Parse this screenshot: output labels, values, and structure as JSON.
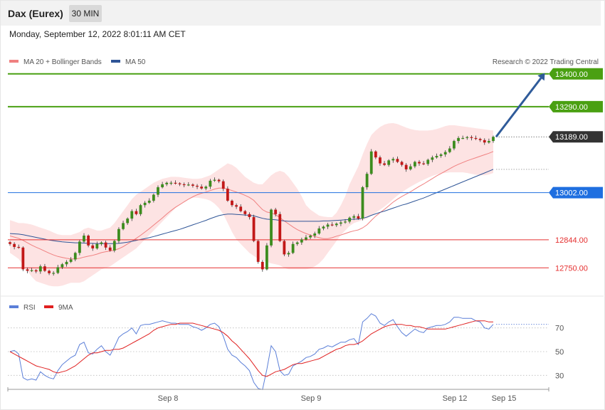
{
  "header": {
    "title": "Dax (Eurex)",
    "timeframe": "30 MIN"
  },
  "datetime": "Monday, September 12, 2022 8:01:11 AM CET",
  "credit": "Research © 2022 Trading Central",
  "legend_main": [
    {
      "label": "MA 20 + Bollinger Bands",
      "color": "#f08080"
    },
    {
      "label": "MA 50",
      "color": "#2f5597"
    }
  ],
  "legend_rsi": [
    {
      "label": "RSI",
      "color": "#5b7fd8"
    },
    {
      "label": "9MA",
      "color": "#e02020"
    }
  ],
  "chart_data": [
    {
      "type": "candlestick",
      "price_range": [
        12660,
        13440
      ],
      "levels": [
        {
          "value": 13400,
          "label": "13400.00",
          "kind": "resistance",
          "color": "#4aa012"
        },
        {
          "value": 13290,
          "label": "13290.00",
          "kind": "resistance",
          "color": "#4aa012"
        },
        {
          "value": 13189,
          "label": "13189.00",
          "kind": "last-price",
          "color": "#333333"
        },
        {
          "value": 13002,
          "label": "13002.00",
          "kind": "pivot",
          "color": "#1f6fe0"
        },
        {
          "value": 12844,
          "label": "12844.00",
          "kind": "support",
          "color": "#e53030"
        },
        {
          "value": 12750,
          "label": "12750.00",
          "kind": "support",
          "color": "#e53030"
        }
      ],
      "projection": {
        "from": 13189,
        "to": 13400
      },
      "x_labels": [
        "Sep 8",
        "Sep 9",
        "Sep 12",
        "Sep 15"
      ],
      "closes": [
        12830,
        12820,
        12818,
        12745,
        12740,
        12742,
        12738,
        12755,
        12740,
        12732,
        12733,
        12752,
        12762,
        12770,
        12778,
        12800,
        12838,
        12858,
        12825,
        12815,
        12830,
        12835,
        12818,
        12808,
        12840,
        12880,
        12900,
        12915,
        12940,
        12930,
        12960,
        12968,
        12975,
        12995,
        13020,
        13030,
        13035,
        13035,
        13033,
        13030,
        13028,
        13029,
        13025,
        13022,
        13016,
        13022,
        13042,
        13045,
        13040,
        13015,
        12975,
        12960,
        12955,
        12940,
        12930,
        12920,
        12840,
        12770,
        12745,
        12825,
        12945,
        12930,
        12840,
        12795,
        12800,
        12830,
        12835,
        12845,
        12852,
        12858,
        12865,
        12882,
        12888,
        12895,
        12893,
        12898,
        12902,
        12905,
        12918,
        12923,
        12915,
        13020,
        13065,
        13140,
        13120,
        13100,
        13095,
        13110,
        13115,
        13105,
        13095,
        13080,
        13090,
        13105,
        13100,
        13098,
        13112,
        13120,
        13125,
        13130,
        13138,
        13150,
        13175,
        13185,
        13185,
        13188,
        13185,
        13182,
        13178,
        13170,
        13175,
        13189
      ],
      "ma20": [
        12857,
        12853,
        12849,
        12842,
        12834,
        12826,
        12819,
        12813,
        12806,
        12799,
        12793,
        12788,
        12785,
        12782,
        12780,
        12780,
        12782,
        12786,
        12789,
        12792,
        12796,
        12801,
        12804,
        12806,
        12809,
        12814,
        12821,
        12830,
        12839,
        12849,
        12859,
        12870,
        12881,
        12893,
        12905,
        12917,
        12930,
        12942,
        12953,
        12962,
        12971,
        12980,
        12988,
        12995,
        13000,
        13004,
        13009,
        13014,
        13017,
        13017,
        13014,
        13009,
        13004,
        12999,
        12993,
        12986,
        12976,
        12960,
        12945,
        12937,
        12934,
        12928,
        12918,
        12907,
        12897,
        12887,
        12878,
        12871,
        12865,
        12860,
        12855,
        12851,
        12848,
        12848,
        12851,
        12856,
        12860,
        12865,
        12870,
        12874,
        12877,
        12884,
        12894,
        12909,
        12923,
        12935,
        12946,
        12958,
        12970,
        12980,
        12989,
        12997,
        13005,
        13014,
        13023,
        13031,
        13040,
        13049,
        13058,
        13066,
        13074,
        13082,
        13090,
        13097,
        13103,
        13109,
        13114,
        13119,
        13124,
        13129,
        13134,
        13140
      ],
      "bb_upper": [
        12910,
        12905,
        12900,
        12900,
        12898,
        12895,
        12890,
        12885,
        12880,
        12875,
        12868,
        12862,
        12860,
        12860,
        12860,
        12865,
        12870,
        12880,
        12885,
        12880,
        12875,
        12875,
        12880,
        12885,
        12900,
        12920,
        12940,
        12960,
        12980,
        12995,
        13005,
        13015,
        13025,
        13035,
        13042,
        13048,
        13052,
        13055,
        13055,
        13054,
        13052,
        13050,
        13048,
        13048,
        13050,
        13055,
        13060,
        13070,
        13080,
        13090,
        13100,
        13095,
        13085,
        13070,
        13055,
        13045,
        13035,
        13030,
        13030,
        13045,
        13060,
        13070,
        13075,
        13070,
        13055,
        13035,
        13015,
        12990,
        12960,
        12945,
        12935,
        12925,
        12922,
        12920,
        12920,
        12935,
        12960,
        12990,
        13030,
        13060,
        13090,
        13130,
        13165,
        13195,
        13210,
        13222,
        13230,
        13234,
        13235,
        13232,
        13226,
        13220,
        13215,
        13212,
        13210,
        13210,
        13210,
        13212,
        13215,
        13220,
        13225,
        13228,
        13228,
        13226,
        13224,
        13222,
        13220,
        13218,
        13216,
        13214,
        13212,
        13210
      ],
      "bb_lower": [
        12800,
        12790,
        12780,
        12760,
        12740,
        12720,
        12705,
        12700,
        12695,
        12690,
        12688,
        12688,
        12690,
        12695,
        12700,
        12700,
        12700,
        12705,
        12715,
        12725,
        12735,
        12745,
        12750,
        12755,
        12765,
        12775,
        12785,
        12795,
        12805,
        12815,
        12830,
        12845,
        12860,
        12875,
        12890,
        12905,
        12920,
        12935,
        12950,
        12962,
        12972,
        12980,
        12985,
        12985,
        12983,
        12980,
        12975,
        12965,
        12950,
        12930,
        12900,
        12870,
        12845,
        12830,
        12815,
        12800,
        12790,
        12780,
        12775,
        12770,
        12765,
        12762,
        12758,
        12750,
        12745,
        12745,
        12745,
        12745,
        12745,
        12748,
        12755,
        12765,
        12780,
        12800,
        12820,
        12840,
        12860,
        12875,
        12890,
        12900,
        12905,
        12910,
        12915,
        12925,
        12935,
        12945,
        12955,
        12967,
        12980,
        12992,
        13003,
        13013,
        13022,
        13030,
        13038,
        13045,
        13052,
        13058,
        13063,
        13066,
        13068,
        13070,
        13070,
        13070,
        13070,
        13068,
        13065,
        13062,
        13060,
        13060,
        13063,
        13068
      ],
      "ma50": [
        12865,
        12864,
        12863,
        12861,
        12858,
        12855,
        12852,
        12849,
        12846,
        12843,
        12841,
        12839,
        12837,
        12836,
        12835,
        12834,
        12834,
        12833,
        12832,
        12832,
        12831,
        12831,
        12831,
        12831,
        12831,
        12832,
        12834,
        12836,
        12839,
        12842,
        12845,
        12848,
        12851,
        12855,
        12859,
        12863,
        12867,
        12871,
        12875,
        12879,
        12884,
        12889,
        12894,
        12899,
        12904,
        12909,
        12915,
        12920,
        12925,
        12928,
        12930,
        12930,
        12929,
        12928,
        12927,
        12926,
        12924,
        12920,
        12916,
        12913,
        12912,
        12911,
        12909,
        12907,
        12906,
        12906,
        12906,
        12906,
        12906,
        12906,
        12906,
        12906,
        12907,
        12907,
        12908,
        12909,
        12910,
        12911,
        12912,
        12913,
        12913,
        12916,
        12920,
        12926,
        12931,
        12936,
        12940,
        12945,
        12950,
        12955,
        12960,
        12964,
        12969,
        12974,
        12979,
        12984,
        12990,
        12996,
        13002,
        13008,
        13014,
        13020,
        13026,
        13032,
        13038,
        13044,
        13050,
        13056,
        13062,
        13068,
        13074,
        13080
      ]
    },
    {
      "type": "line",
      "name": "RSI panel",
      "ylim": [
        20,
        80
      ],
      "yticks": [
        70,
        50,
        30
      ],
      "series": [
        {
          "name": "RSI",
          "values": [
            50,
            51,
            48,
            28,
            26,
            27,
            26,
            33,
            30,
            28,
            27,
            34,
            39,
            42,
            45,
            47,
            56,
            58,
            49,
            48,
            52,
            55,
            50,
            47,
            54,
            62,
            65,
            67,
            70,
            65,
            72,
            73,
            73,
            74,
            75,
            76,
            75,
            74,
            74,
            73,
            73,
            73,
            71,
            70,
            68,
            70,
            73,
            74,
            71,
            63,
            52,
            47,
            45,
            41,
            38,
            34,
            24,
            19,
            18,
            35,
            55,
            50,
            34,
            30,
            31,
            38,
            40,
            42,
            45,
            46,
            48,
            52,
            53,
            55,
            54,
            56,
            58,
            58,
            60,
            61,
            56,
            75,
            78,
            82,
            80,
            74,
            72,
            75,
            77,
            71,
            66,
            63,
            66,
            69,
            67,
            66,
            70,
            71,
            72,
            72,
            73,
            75,
            79,
            79,
            78,
            78,
            78,
            76,
            75,
            70,
            69,
            73
          ]
        },
        {
          "name": "9MA",
          "values": [
            50,
            48,
            46,
            44,
            42,
            40,
            38,
            37,
            36,
            35,
            33,
            32,
            33,
            34,
            36,
            38,
            41,
            44,
            47,
            49,
            49,
            50,
            51,
            51,
            52,
            52,
            53,
            55,
            57,
            59,
            61,
            63,
            65,
            68,
            70,
            71,
            72,
            73,
            73,
            74,
            74,
            74,
            74,
            73,
            72,
            71,
            70,
            69,
            68,
            66,
            63,
            59,
            56,
            52,
            48,
            44,
            39,
            34,
            30,
            29,
            31,
            33,
            34,
            35,
            37,
            39,
            40,
            40,
            41,
            42,
            43,
            44,
            46,
            48,
            50,
            52,
            53,
            55,
            56,
            56,
            57,
            59,
            62,
            65,
            67,
            69,
            71,
            72,
            73,
            73,
            73,
            72,
            72,
            71,
            71,
            70,
            69,
            69,
            69,
            69,
            69,
            70,
            71,
            72,
            73,
            74,
            75,
            76,
            76,
            76,
            75,
            75
          ]
        }
      ],
      "x_labels": [
        "Sep 8",
        "Sep 9",
        "Sep 12",
        "Sep 15"
      ]
    }
  ]
}
